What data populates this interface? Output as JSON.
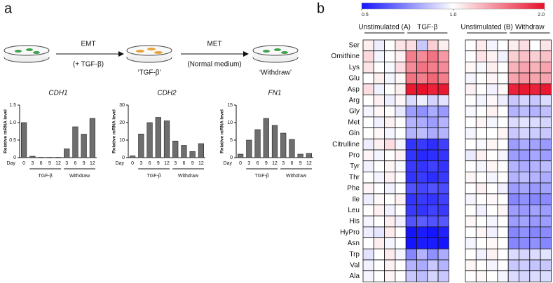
{
  "panel_labels": [
    "a",
    "b"
  ],
  "diagram": {
    "steps": [
      {
        "label": "EMT",
        "note": "(+ TGF-β)"
      },
      {
        "label": "MET",
        "note": "(Normal medium)"
      }
    ],
    "states": [
      "‘TGF-β’",
      "‘Withdraw’"
    ]
  },
  "chart_data": [
    {
      "type": "bar",
      "title": "CDH1",
      "xlabel": "Day",
      "ylabel": "Relative mRNA level",
      "color": "#6e6e6e",
      "ylim": [
        0,
        1.5
      ],
      "yticks": [
        0,
        0.5,
        {
          "value": 1,
          "label": "1.0"
        },
        1.5
      ],
      "groups": [
        {
          "label": null,
          "categories": [
            "0"
          ],
          "values": [
            1.0
          ]
        },
        {
          "label": "TGF-β",
          "categories": [
            "3",
            "6",
            "9",
            "12"
          ],
          "values": [
            0.04,
            0.01,
            0.01,
            0.01
          ]
        },
        {
          "label": "Withdraw",
          "categories": [
            "3",
            "6",
            "9",
            "12"
          ],
          "values": [
            0.25,
            0.88,
            0.67,
            1.12
          ]
        }
      ]
    },
    {
      "type": "bar",
      "title": "CDH2",
      "xlabel": "Day",
      "ylabel": "Relative mRNA level",
      "color": "#6e6e6e",
      "ylim": [
        0,
        30
      ],
      "yticks": [
        0,
        10,
        20,
        30
      ],
      "groups": [
        {
          "label": null,
          "categories": [
            "0"
          ],
          "values": [
            1
          ]
        },
        {
          "label": "TGF-β",
          "categories": [
            "3",
            "6",
            "9",
            "12"
          ],
          "values": [
            13.5,
            20,
            23,
            21
          ]
        },
        {
          "label": "Withdraw",
          "categories": [
            "3",
            "6",
            "9",
            "12"
          ],
          "values": [
            9.5,
            7,
            3.5,
            8
          ]
        }
      ]
    },
    {
      "type": "bar",
      "title": "FN1",
      "xlabel": "Day",
      "ylabel": "Relative mRNA level",
      "color": "#6e6e6e",
      "ylim": [
        0,
        15
      ],
      "yticks": [
        0,
        5,
        10,
        15
      ],
      "groups": [
        {
          "label": null,
          "categories": [
            "0"
          ],
          "values": [
            1
          ]
        },
        {
          "label": "TGF-β",
          "categories": [
            "3",
            "6",
            "9",
            "12"
          ],
          "values": [
            5,
            8,
            11.2,
            9.2
          ]
        },
        {
          "label": "Withdraw",
          "categories": [
            "3",
            "6",
            "9",
            "12"
          ],
          "values": [
            7,
            5.2,
            1,
            1.2
          ]
        }
      ]
    },
    {
      "type": "heatmap",
      "log_scale": true,
      "colors": [
        "#1414ff",
        "#ffffff",
        "#e8102a"
      ],
      "clim": [
        0.5,
        2
      ],
      "cticks": [
        0.5,
        {
          "value": 1,
          "label": "1.0"
        },
        {
          "value": 2,
          "label": "2.0"
        }
      ],
      "rows": [
        "Ser",
        "Ornithine",
        "Lys",
        "Glu",
        "Asp",
        "Arg",
        "Gly",
        "Met",
        "Gln",
        "Citrulline",
        "Pro",
        "Tyr",
        "Thr",
        "Phe",
        "Ile",
        "Leu",
        "His",
        "HyPro",
        "Asn",
        "Trp",
        "Val",
        "Ala"
      ],
      "series": [
        {
          "name": "Unstimulated (A)",
          "values": [
            [
              1.05,
              0.95,
              1.0,
              1.08
            ],
            [
              1.12,
              0.97,
              1.0,
              1.04
            ],
            [
              1.08,
              1.0,
              0.98,
              1.1
            ],
            [
              1.0,
              1.05,
              0.97,
              1.02
            ],
            [
              1.1,
              0.96,
              1.0,
              1.05
            ],
            [
              1.0,
              1.04,
              0.95,
              1.02
            ],
            [
              0.97,
              1.02,
              1.0,
              0.94
            ],
            [
              1.0,
              0.96,
              1.04,
              1.0
            ],
            [
              1.0,
              1.02,
              0.97,
              1.0
            ],
            [
              0.95,
              1.04,
              1.1,
              0.97
            ],
            [
              1.03,
              0.97,
              1.0,
              1.04
            ],
            [
              0.96,
              1.0,
              1.03,
              0.98
            ],
            [
              1.0,
              0.97,
              1.04,
              1.0
            ],
            [
              1.03,
              1.0,
              0.96,
              1.0
            ],
            [
              0.95,
              1.02,
              1.0,
              1.04
            ],
            [
              1.0,
              1.04,
              0.96,
              1.0
            ],
            [
              0.97,
              1.0,
              1.05,
              0.96
            ],
            [
              0.95,
              0.93,
              1.06,
              1.0
            ],
            [
              1.0,
              1.05,
              0.97,
              1.0
            ],
            [
              0.92,
              1.0,
              1.06,
              0.97
            ],
            [
              0.96,
              1.0,
              1.04,
              1.0
            ],
            [
              0.97,
              1.0,
              1.03,
              1.0
            ]
          ]
        },
        {
          "name": "TGF-β",
          "values": [
            [
              1.1,
              0.85,
              1.15,
              1.05
            ],
            [
              1.45,
              1.4,
              1.5,
              1.35
            ],
            [
              1.4,
              1.5,
              1.45,
              1.4
            ],
            [
              1.5,
              1.45,
              1.55,
              1.45
            ],
            [
              1.95,
              2.0,
              1.9,
              1.95
            ],
            [
              0.9,
              0.95,
              0.88,
              0.92
            ],
            [
              0.75,
              0.72,
              0.78,
              0.74
            ],
            [
              0.8,
              0.78,
              0.75,
              0.8
            ],
            [
              0.8,
              0.82,
              0.78,
              0.8
            ],
            [
              0.55,
              0.56,
              0.54,
              0.57
            ],
            [
              0.55,
              0.53,
              0.54,
              0.55
            ],
            [
              0.56,
              0.55,
              0.57,
              0.55
            ],
            [
              0.55,
              0.56,
              0.54,
              0.56
            ],
            [
              0.6,
              0.58,
              0.6,
              0.59
            ],
            [
              0.55,
              0.56,
              0.55,
              0.57
            ],
            [
              0.56,
              0.55,
              0.57,
              0.56
            ],
            [
              0.6,
              0.62,
              0.6,
              0.61
            ],
            [
              0.5,
              0.51,
              0.5,
              0.52
            ],
            [
              0.5,
              0.51,
              0.51,
              0.5
            ],
            [
              0.7,
              0.8,
              0.72,
              0.78
            ],
            [
              0.8,
              0.78,
              0.85,
              0.8
            ],
            [
              0.85,
              0.82,
              0.88,
              0.85
            ]
          ]
        },
        {
          "name": "Unstimulated (B)",
          "values": [
            [
              1.0,
              1.06,
              0.97,
              1.0
            ],
            [
              1.0,
              1.08,
              1.04,
              0.96
            ],
            [
              1.02,
              0.98,
              1.05,
              1.0
            ],
            [
              0.97,
              1.0,
              1.03,
              1.0
            ],
            [
              1.04,
              1.0,
              0.96,
              1.02
            ],
            [
              1.0,
              0.97,
              1.02,
              0.95
            ],
            [
              0.98,
              1.0,
              1.04,
              1.0
            ],
            [
              1.0,
              1.03,
              0.97,
              1.0
            ],
            [
              0.97,
              1.0,
              1.0,
              1.03
            ],
            [
              1.0,
              0.98,
              1.03,
              1.0
            ],
            [
              0.94,
              1.04,
              1.0,
              0.97
            ],
            [
              1.0,
              0.97,
              1.03,
              1.0
            ],
            [
              1.03,
              1.0,
              0.97,
              1.0
            ],
            [
              1.0,
              1.04,
              1.0,
              0.96
            ],
            [
              0.97,
              1.0,
              1.02,
              1.0
            ],
            [
              1.0,
              0.96,
              1.0,
              1.03
            ],
            [
              1.02,
              1.0,
              0.97,
              1.0
            ],
            [
              1.0,
              1.03,
              0.96,
              1.0
            ],
            [
              0.97,
              1.0,
              1.02,
              1.0
            ],
            [
              1.0,
              0.96,
              1.04,
              1.0
            ],
            [
              1.03,
              1.0,
              0.97,
              1.0
            ],
            [
              1.0,
              1.02,
              1.0,
              0.97
            ]
          ]
        },
        {
          "name": "Withdraw",
          "values": [
            [
              1.05,
              1.1,
              1.0,
              1.08
            ],
            [
              1.15,
              1.2,
              1.15,
              1.2
            ],
            [
              1.25,
              1.3,
              1.25,
              1.3
            ],
            [
              1.3,
              1.35,
              1.3,
              1.3
            ],
            [
              1.9,
              1.95,
              1.9,
              1.95
            ],
            [
              0.85,
              0.88,
              0.85,
              0.9
            ],
            [
              0.8,
              0.82,
              0.8,
              0.83
            ],
            [
              0.9,
              0.92,
              0.9,
              0.88
            ],
            [
              0.85,
              0.88,
              0.86,
              0.85
            ],
            [
              0.75,
              0.78,
              0.76,
              0.74
            ],
            [
              0.75,
              0.74,
              0.77,
              0.75
            ],
            [
              0.8,
              0.78,
              0.8,
              0.82
            ],
            [
              0.8,
              0.82,
              0.8,
              0.78
            ],
            [
              0.75,
              0.77,
              0.74,
              0.76
            ],
            [
              0.7,
              0.72,
              0.7,
              0.71
            ],
            [
              0.75,
              0.74,
              0.76,
              0.75
            ],
            [
              0.75,
              0.76,
              0.74,
              0.75
            ],
            [
              0.7,
              0.72,
              0.7,
              0.71
            ],
            [
              0.7,
              0.71,
              0.72,
              0.7
            ],
            [
              0.9,
              0.88,
              0.9,
              0.92
            ],
            [
              0.85,
              0.86,
              0.84,
              0.85
            ],
            [
              0.9,
              0.88,
              0.9,
              0.9
            ]
          ]
        }
      ]
    }
  ]
}
